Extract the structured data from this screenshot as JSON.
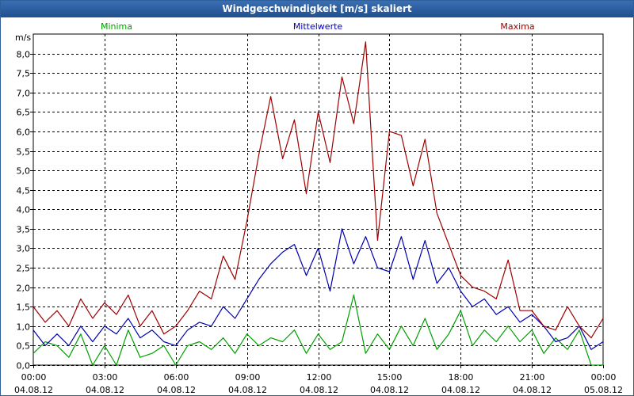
{
  "window": {
    "title": "Windgeschwindigkeit [m/s] skaliert"
  },
  "chart_data": {
    "type": "line",
    "title": "Windgeschwindigkeit [m/s] skaliert",
    "ylabel": "m/s",
    "xlabel": "",
    "ylim": [
      0,
      8.5
    ],
    "grid": true,
    "legend_placement": "top",
    "yticks": [
      "0,0",
      "0,5",
      "1,0",
      "1,5",
      "2,0",
      "2,5",
      "3,0",
      "3,5",
      "4,0",
      "4,5",
      "5,0",
      "5,5",
      "6,0",
      "6,5",
      "7,0",
      "7,5",
      "8,0"
    ],
    "xticks": [
      {
        "time": "00:00",
        "date": "04.08.12"
      },
      {
        "time": "03:00",
        "date": "04.08.12"
      },
      {
        "time": "06:00",
        "date": "04.08.12"
      },
      {
        "time": "09:00",
        "date": "04.08.12"
      },
      {
        "time": "12:00",
        "date": "04.08.12"
      },
      {
        "time": "15:00",
        "date": "04.08.12"
      },
      {
        "time": "18:00",
        "date": "04.08.12"
      },
      {
        "time": "21:00",
        "date": "04.08.12"
      },
      {
        "time": "00:00",
        "date": "05.08.12"
      }
    ],
    "x_hours": [
      0,
      0.5,
      1,
      1.5,
      2,
      2.5,
      3,
      3.5,
      4,
      4.5,
      5,
      5.5,
      6,
      6.5,
      7,
      7.5,
      8,
      8.5,
      9,
      9.5,
      10,
      10.5,
      11,
      11.5,
      12,
      12.5,
      13,
      13.5,
      14,
      14.5,
      15,
      15.5,
      16,
      16.5,
      17,
      17.5,
      18,
      18.5,
      19,
      19.5,
      20,
      20.5,
      21,
      21.5,
      22,
      22.5,
      23,
      23.5,
      24
    ],
    "series": [
      {
        "name": "Minima",
        "color": "#00a000",
        "values": [
          0.3,
          0.6,
          0.5,
          0.2,
          0.8,
          0.0,
          0.5,
          0.0,
          0.9,
          0.2,
          0.3,
          0.5,
          0.0,
          0.5,
          0.6,
          0.4,
          0.7,
          0.3,
          0.8,
          0.5,
          0.7,
          0.6,
          0.9,
          0.3,
          0.8,
          0.4,
          0.6,
          1.8,
          0.3,
          0.8,
          0.4,
          1.0,
          0.5,
          1.2,
          0.4,
          0.8,
          1.4,
          0.5,
          0.9,
          0.6,
          1.0,
          0.6,
          0.9,
          0.3,
          0.7,
          0.4,
          0.9,
          0.0,
          0.0
        ]
      },
      {
        "name": "Mittelwerte",
        "color": "#0000b0",
        "values": [
          0.9,
          0.5,
          0.8,
          0.5,
          1.0,
          0.6,
          1.0,
          0.8,
          1.2,
          0.7,
          0.9,
          0.6,
          0.5,
          0.9,
          1.1,
          1.0,
          1.5,
          1.2,
          1.7,
          2.2,
          2.6,
          2.9,
          3.1,
          2.3,
          3.0,
          1.9,
          3.5,
          2.6,
          3.3,
          2.5,
          2.4,
          3.3,
          2.2,
          3.2,
          2.1,
          2.5,
          1.9,
          1.5,
          1.7,
          1.3,
          1.5,
          1.1,
          1.3,
          1.0,
          0.6,
          0.7,
          1.0,
          0.4,
          0.6
        ]
      },
      {
        "name": "Maxima",
        "color": "#a00000",
        "values": [
          1.5,
          1.1,
          1.4,
          1.0,
          1.7,
          1.2,
          1.6,
          1.3,
          1.8,
          1.0,
          1.4,
          0.8,
          1.0,
          1.4,
          1.9,
          1.7,
          2.8,
          2.2,
          3.7,
          5.4,
          6.9,
          5.3,
          6.3,
          4.4,
          6.5,
          5.2,
          7.4,
          6.2,
          8.3,
          3.2,
          6.0,
          5.9,
          4.6,
          5.8,
          3.9,
          3.1,
          2.3,
          2.0,
          1.9,
          1.7,
          2.7,
          1.4,
          1.4,
          1.0,
          0.9,
          1.5,
          1.0,
          0.7,
          1.2
        ]
      }
    ]
  }
}
